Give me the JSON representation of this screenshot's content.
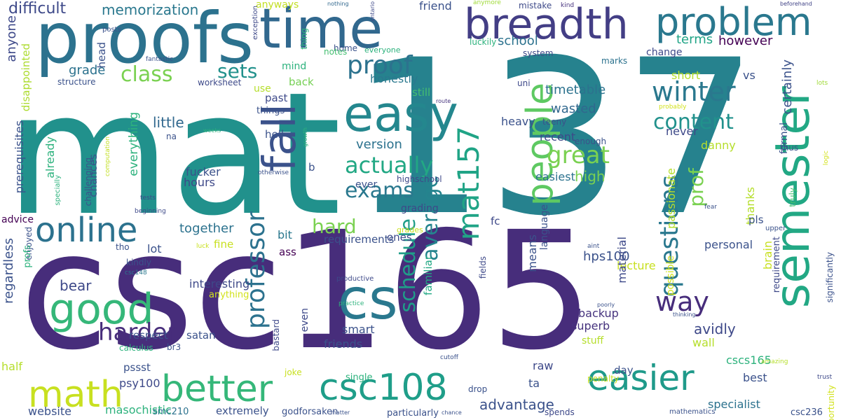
{
  "words": [
    {
      "text": "mat",
      "color": "#21918c"
    },
    {
      "text": "csc165",
      "color": "#472d7b"
    },
    {
      "text": "137",
      "color": "#26828e"
    },
    {
      "text": "proofs",
      "color": "#2c728e"
    },
    {
      "text": "time",
      "color": "#31688e"
    },
    {
      "text": "breadth",
      "color": "#433e85"
    },
    {
      "text": "problem",
      "color": "#2a788e"
    },
    {
      "text": "semester",
      "color": "#22a884"
    },
    {
      "text": "easy",
      "color": "#24878e"
    },
    {
      "text": "fall",
      "color": "#3b528b"
    },
    {
      "text": "cs",
      "color": "#2a788e"
    },
    {
      "text": "good",
      "color": "#35b779"
    },
    {
      "text": "online",
      "color": "#2c728e"
    },
    {
      "text": "math",
      "color": "#c8e020"
    },
    {
      "text": "better",
      "color": "#35b779"
    },
    {
      "text": "csc108",
      "color": "#1f9e89"
    },
    {
      "text": "easier",
      "color": "#1f9a8a"
    },
    {
      "text": "people",
      "color": "#5ec962"
    },
    {
      "text": "mat157",
      "color": "#20a486"
    },
    {
      "text": "winter",
      "color": "#2a788e"
    },
    {
      "text": "way",
      "color": "#472d7b"
    },
    {
      "text": "questions",
      "color": "#2a788e"
    },
    {
      "text": "professor",
      "color": "#2c728e"
    },
    {
      "text": "schedule",
      "color": "#1f9e89"
    },
    {
      "text": "average",
      "color": "#25848e"
    },
    {
      "text": "harder",
      "color": "#472d7b"
    },
    {
      "text": "exams",
      "color": "#2a788e"
    },
    {
      "text": "actually",
      "color": "#22a884"
    },
    {
      "text": "proof",
      "color": "#2c728e"
    },
    {
      "text": "great",
      "color": "#7ad151"
    },
    {
      "text": "content",
      "color": "#21918c"
    },
    {
      "text": "class",
      "color": "#7ad151"
    },
    {
      "text": "sets",
      "color": "#21918c"
    },
    {
      "text": "hard",
      "color": "#7ad151"
    },
    {
      "text": "prof",
      "color": "#7ad151"
    },
    {
      "text": "difficult",
      "color": "#3e4989"
    },
    {
      "text": "memorization",
      "color": "#2a788e"
    },
    {
      "text": "friend",
      "color": "#3b528b"
    },
    {
      "text": "mistake",
      "color": "#3e4a89"
    },
    {
      "text": "kind",
      "color": "#46337e"
    },
    {
      "text": "beforehand",
      "color": "#414487"
    },
    {
      "text": "nothing",
      "color": "#31688e"
    },
    {
      "text": "ontario",
      "color": "#3e4989"
    },
    {
      "text": "anymore",
      "color": "#a0da39"
    },
    {
      "text": "anyways",
      "color": "#c2df23"
    },
    {
      "text": "exception",
      "color": "#3e4989"
    },
    {
      "text": "anyone",
      "color": "#3e4989"
    },
    {
      "text": "posts",
      "color": "#3b528b"
    },
    {
      "text": "home",
      "color": "#3b528b"
    },
    {
      "text": "notes",
      "color": "#44bf70"
    },
    {
      "text": "everyone",
      "color": "#2db27d"
    },
    {
      "text": "luckily",
      "color": "#2db27d"
    },
    {
      "text": "thing",
      "color": "#2db27d"
    },
    {
      "text": "school",
      "color": "#2c728e"
    },
    {
      "text": "terms",
      "color": "#20a486"
    },
    {
      "text": "however",
      "color": "#440154"
    },
    {
      "text": "marks",
      "color": "#2c728e"
    },
    {
      "text": "fantastic",
      "color": "#3b528b"
    },
    {
      "text": "disappointed",
      "color": "#addc30"
    },
    {
      "text": "head",
      "color": "#3b528b"
    },
    {
      "text": "grade",
      "color": "#2c728e"
    },
    {
      "text": "mind",
      "color": "#2db27d"
    },
    {
      "text": "structure",
      "color": "#3b528b"
    },
    {
      "text": "worksheet",
      "color": "#3e4a89"
    },
    {
      "text": "back",
      "color": "#75d054"
    },
    {
      "text": "honestly",
      "color": "#2a788e"
    },
    {
      "text": "system",
      "color": "#3e4a89"
    },
    {
      "text": "change",
      "color": "#3e4989"
    },
    {
      "text": "lots",
      "color": "#a0da39"
    },
    {
      "text": "short",
      "color": "#b5de2b"
    },
    {
      "text": "vs",
      "color": "#3b528b"
    },
    {
      "text": "uni",
      "color": "#3e4989"
    },
    {
      "text": "timetable",
      "color": "#2c728e"
    },
    {
      "text": "certainly",
      "color": "#3b528b"
    },
    {
      "text": "use",
      "color": "#b5de2b"
    },
    {
      "text": "past",
      "color": "#3e4a89"
    },
    {
      "text": "still",
      "color": "#44bf70"
    },
    {
      "text": "things",
      "color": "#3b528b"
    },
    {
      "text": "route",
      "color": "#46337e"
    },
    {
      "text": "formal",
      "color": "#3b528b"
    },
    {
      "text": "probably",
      "color": "#d2e21b"
    },
    {
      "text": "prerequisites",
      "color": "#3b528b"
    },
    {
      "text": "weeks",
      "color": "#2db27d"
    },
    {
      "text": "computation",
      "color": "#c2df23"
    },
    {
      "text": "na",
      "color": "#3b528b"
    },
    {
      "text": "everything",
      "color": "#2db27d"
    },
    {
      "text": "already",
      "color": "#2db27d"
    },
    {
      "text": "little",
      "color": "#31688e"
    },
    {
      "text": "hell",
      "color": "#3b528b"
    },
    {
      "text": "growth",
      "color": "#2db27d"
    },
    {
      "text": "wasted",
      "color": "#31688e"
    },
    {
      "text": "heavy",
      "color": "#3b528b"
    },
    {
      "text": "teeny",
      "color": "#3b528b"
    },
    {
      "text": "enough",
      "color": "#3b528b"
    },
    {
      "text": "recent",
      "color": "#3e4989"
    },
    {
      "text": "never",
      "color": "#3e4989"
    },
    {
      "text": "thus",
      "color": "#3b528b"
    },
    {
      "text": "logic",
      "color": "#d2e21b"
    },
    {
      "text": "version",
      "color": "#2c728e"
    },
    {
      "text": "danny",
      "color": "#b5de2b"
    },
    {
      "text": "specially",
      "color": "#2db27d"
    },
    {
      "text": "otherwise",
      "color": "#3b528b"
    },
    {
      "text": "b",
      "color": "#3b528b"
    },
    {
      "text": "easiest",
      "color": "#2c728e"
    },
    {
      "text": "passionate",
      "color": "#b5de2b"
    },
    {
      "text": "thanks",
      "color": "#b5de2b"
    },
    {
      "text": "high",
      "color": "#7ad151"
    },
    {
      "text": "challenging",
      "color": "#3b528b"
    },
    {
      "text": "chances",
      "color": "#3b528b"
    },
    {
      "text": "fucker",
      "color": "#3b528b"
    },
    {
      "text": "hours",
      "color": "#3e4989"
    },
    {
      "text": "ever",
      "color": "#3b528b"
    },
    {
      "text": "highschool",
      "color": "#3e4989"
    },
    {
      "text": "truly",
      "color": "#44bf70"
    },
    {
      "text": "tests",
      "color": "#3e4989"
    },
    {
      "text": "grading",
      "color": "#3e4989"
    },
    {
      "text": "language",
      "color": "#3b528b"
    },
    {
      "text": "fear",
      "color": "#3b528b"
    },
    {
      "text": "pls",
      "color": "#3b528b"
    },
    {
      "text": "beginning",
      "color": "#3e4a89"
    },
    {
      "text": "advice",
      "color": "#440154"
    },
    {
      "text": "enjoyed",
      "color": "#3b528b"
    },
    {
      "text": "together",
      "color": "#2c728e"
    },
    {
      "text": "ones",
      "color": "#3e4989"
    },
    {
      "text": "fc",
      "color": "#3e4989"
    },
    {
      "text": "upper",
      "color": "#3b528b"
    },
    {
      "text": "grades",
      "color": "#c8e020"
    },
    {
      "text": "tho",
      "color": "#3b528b"
    },
    {
      "text": "lot",
      "color": "#3b528b"
    },
    {
      "text": "fine",
      "color": "#c8e020"
    },
    {
      "text": "bit",
      "color": "#2a788e"
    },
    {
      "text": "requirements",
      "color": "#3b528b"
    },
    {
      "text": "personal",
      "color": "#3b528b"
    },
    {
      "text": "aint",
      "color": "#3b528b"
    },
    {
      "text": "requirement",
      "color": "#3e4989"
    },
    {
      "text": "luck",
      "color": "#c8e020"
    },
    {
      "text": "ass",
      "color": "#440154"
    },
    {
      "text": "regardless",
      "color": "#3b528b"
    },
    {
      "text": "profs",
      "color": "#2db27d"
    },
    {
      "text": "kindly",
      "color": "#3b528b"
    },
    {
      "text": "hps100",
      "color": "#3b528b"
    },
    {
      "text": "lecture",
      "color": "#c8e020"
    },
    {
      "text": "csc148",
      "color": "#2a788e"
    },
    {
      "text": "possible",
      "color": "#d2e21b"
    },
    {
      "text": "means",
      "color": "#3b528b"
    },
    {
      "text": "material",
      "color": "#3e4989"
    },
    {
      "text": "bear",
      "color": "#3e4989"
    },
    {
      "text": "familiar",
      "color": "#22a884"
    },
    {
      "text": "productive",
      "color": "#3e4989"
    },
    {
      "text": "fields",
      "color": "#3e4989"
    },
    {
      "text": "interesting",
      "color": "#3e4989"
    },
    {
      "text": "backup",
      "color": "#46337e"
    },
    {
      "text": "superb",
      "color": "#46337e"
    },
    {
      "text": "avidly",
      "color": "#3e4989"
    },
    {
      "text": "brain",
      "color": "#c8e020"
    },
    {
      "text": "significantly",
      "color": "#3b528b"
    },
    {
      "text": "poorly",
      "color": "#3b528b"
    },
    {
      "text": "thinking",
      "color": "#3b528b"
    },
    {
      "text": "anything",
      "color": "#d2e21b"
    },
    {
      "text": "practice",
      "color": "#2db27d"
    },
    {
      "text": "respect",
      "color": "#3b528b"
    },
    {
      "text": "satan",
      "color": "#3b528b"
    },
    {
      "text": "even",
      "color": "#3e4989"
    },
    {
      "text": "smart",
      "color": "#3b528b"
    },
    {
      "text": "stuff",
      "color": "#b5de2b"
    },
    {
      "text": "wall",
      "color": "#b5de2b"
    },
    {
      "text": "bastard",
      "color": "#3e4989"
    },
    {
      "text": "calculus",
      "color": "#2db27d"
    },
    {
      "text": "br3",
      "color": "#3b528b"
    },
    {
      "text": "friends",
      "color": "#3b528b"
    },
    {
      "text": "cscs165",
      "color": "#2db27d"
    },
    {
      "text": "half",
      "color": "#b5de2b"
    },
    {
      "text": "pssst",
      "color": "#3b528b"
    },
    {
      "text": "joke",
      "color": "#c8e020"
    },
    {
      "text": "single",
      "color": "#2db27d"
    },
    {
      "text": "cutoff",
      "color": "#3b528b"
    },
    {
      "text": "raw",
      "color": "#3e4989"
    },
    {
      "text": "day",
      "color": "#3b528b"
    },
    {
      "text": "amazing",
      "color": "#b5de2b"
    },
    {
      "text": "psy100",
      "color": "#3e4989"
    },
    {
      "text": "drop",
      "color": "#3b528b"
    },
    {
      "text": "ta",
      "color": "#3b528b"
    },
    {
      "text": "penalty",
      "color": "#c8e020"
    },
    {
      "text": "best",
      "color": "#3b528b"
    },
    {
      "text": "trust",
      "color": "#3e4989"
    },
    {
      "text": "opportunity",
      "color": "#d2e21b"
    },
    {
      "text": "advantage",
      "color": "#3b528b"
    },
    {
      "text": "specialist",
      "color": "#2c728e"
    },
    {
      "text": "website",
      "color": "#3b528b"
    },
    {
      "text": "masochistic",
      "color": "#2db27d"
    },
    {
      "text": "smc210",
      "color": "#2c728e"
    },
    {
      "text": "extremely",
      "color": "#3b528b"
    },
    {
      "text": "godforsaken",
      "color": "#3b528b"
    },
    {
      "text": "matter",
      "color": "#3b528b"
    },
    {
      "text": "particularly",
      "color": "#3b528b"
    },
    {
      "text": "chance",
      "color": "#3b528b"
    },
    {
      "text": "spends",
      "color": "#3e4989"
    },
    {
      "text": "mathematics",
      "color": "#3b528b"
    },
    {
      "text": "csc236",
      "color": "#3b528b"
    },
    {
      "text": "twice",
      "color": "#3b528b"
    }
  ]
}
